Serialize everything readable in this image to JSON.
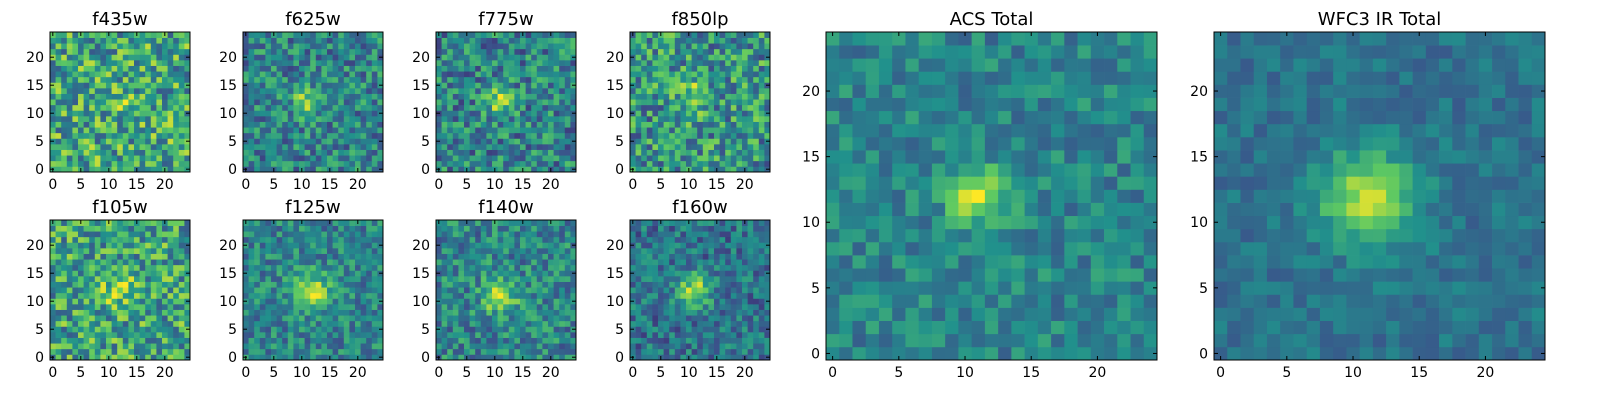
{
  "figure": {
    "colormap": [
      "#440154",
      "#3b528b",
      "#21918c",
      "#5ec962",
      "#fde725"
    ]
  },
  "chart_data": [
    {
      "type": "heatmap",
      "title": "f435w",
      "grid_size": [
        25,
        25
      ],
      "xlim": [
        0,
        24
      ],
      "ylim": [
        0,
        24
      ],
      "xticks": [
        0,
        5,
        10,
        15,
        20
      ],
      "yticks": [
        0,
        5,
        10,
        15,
        20
      ],
      "center": [
        12,
        13
      ],
      "peak_width": 1.8,
      "peak_amp": 0.12,
      "noise": 0.32,
      "base": 0.6,
      "seed": 11
    },
    {
      "type": "heatmap",
      "title": "f625w",
      "grid_size": [
        25,
        25
      ],
      "xlim": [
        0,
        24
      ],
      "ylim": [
        0,
        24
      ],
      "xticks": [
        0,
        5,
        10,
        15,
        20
      ],
      "yticks": [
        0,
        5,
        10,
        15,
        20
      ],
      "center": [
        11,
        12
      ],
      "peak_width": 1.8,
      "peak_amp": 0.35,
      "noise": 0.24,
      "base": 0.45,
      "seed": 23
    },
    {
      "type": "heatmap",
      "title": "f775w",
      "grid_size": [
        25,
        25
      ],
      "xlim": [
        0,
        24
      ],
      "ylim": [
        0,
        24
      ],
      "xticks": [
        0,
        5,
        10,
        15,
        20
      ],
      "yticks": [
        0,
        5,
        10,
        15,
        20
      ],
      "center": [
        11,
        12
      ],
      "peak_width": 1.8,
      "peak_amp": 0.38,
      "noise": 0.26,
      "base": 0.45,
      "seed": 37
    },
    {
      "type": "heatmap",
      "title": "f850lp",
      "grid_size": [
        25,
        25
      ],
      "xlim": [
        0,
        24
      ],
      "ylim": [
        0,
        24
      ],
      "xticks": [
        0,
        5,
        10,
        15,
        20
      ],
      "yticks": [
        0,
        5,
        10,
        15,
        20
      ],
      "center": [
        11,
        13
      ],
      "peak_width": 2.0,
      "peak_amp": 0.25,
      "noise": 0.3,
      "base": 0.52,
      "seed": 41
    },
    {
      "type": "heatmap",
      "title": "f105w",
      "grid_size": [
        25,
        25
      ],
      "xlim": [
        0,
        24
      ],
      "ylim": [
        0,
        24
      ],
      "xticks": [
        0,
        5,
        10,
        15,
        20
      ],
      "yticks": [
        0,
        5,
        10,
        15,
        20
      ],
      "center": [
        12,
        12
      ],
      "peak_width": 2.5,
      "peak_amp": 0.18,
      "noise": 0.3,
      "base": 0.58,
      "seed": 53
    },
    {
      "type": "heatmap",
      "title": "f125w",
      "grid_size": [
        25,
        25
      ],
      "xlim": [
        0,
        24
      ],
      "ylim": [
        0,
        24
      ],
      "xticks": [
        0,
        5,
        10,
        15,
        20
      ],
      "yticks": [
        0,
        5,
        10,
        15,
        20
      ],
      "center": [
        12,
        12
      ],
      "peak_width": 2.3,
      "peak_amp": 0.42,
      "noise": 0.2,
      "base": 0.45,
      "seed": 67
    },
    {
      "type": "heatmap",
      "title": "f140w",
      "grid_size": [
        25,
        25
      ],
      "xlim": [
        0,
        24
      ],
      "ylim": [
        0,
        24
      ],
      "xticks": [
        0,
        5,
        10,
        15,
        20
      ],
      "yticks": [
        0,
        5,
        10,
        15,
        20
      ],
      "center": [
        11,
        11
      ],
      "peak_width": 2.4,
      "peak_amp": 0.38,
      "noise": 0.22,
      "base": 0.45,
      "seed": 79
    },
    {
      "type": "heatmap",
      "title": "f160w",
      "grid_size": [
        25,
        25
      ],
      "xlim": [
        0,
        24
      ],
      "ylim": [
        0,
        24
      ],
      "xticks": [
        0,
        5,
        10,
        15,
        20
      ],
      "yticks": [
        0,
        5,
        10,
        15,
        20
      ],
      "center": [
        11,
        12
      ],
      "peak_width": 2.2,
      "peak_amp": 0.45,
      "noise": 0.2,
      "base": 0.38,
      "seed": 83
    },
    {
      "type": "heatmap",
      "title": "ACS Total",
      "grid_size": [
        25,
        25
      ],
      "xlim": [
        0,
        24
      ],
      "ylim": [
        0,
        24
      ],
      "xticks": [
        0,
        5,
        10,
        15,
        20
      ],
      "yticks": [
        0,
        5,
        10,
        15,
        20
      ],
      "center": [
        11,
        12
      ],
      "peak_width": 1.6,
      "peak_amp": 0.45,
      "noise": 0.15,
      "base": 0.45,
      "seed": 97
    },
    {
      "type": "heatmap",
      "title": "WFC3 IR Total",
      "grid_size": [
        25,
        25
      ],
      "xlim": [
        0,
        24
      ],
      "ylim": [
        0,
        24
      ],
      "xticks": [
        0,
        5,
        10,
        15,
        20
      ],
      "yticks": [
        0,
        5,
        10,
        15,
        20
      ],
      "center": [
        11,
        12
      ],
      "peak_width": 2.5,
      "peak_amp": 0.5,
      "noise": 0.1,
      "base": 0.38,
      "seed": 101
    }
  ]
}
